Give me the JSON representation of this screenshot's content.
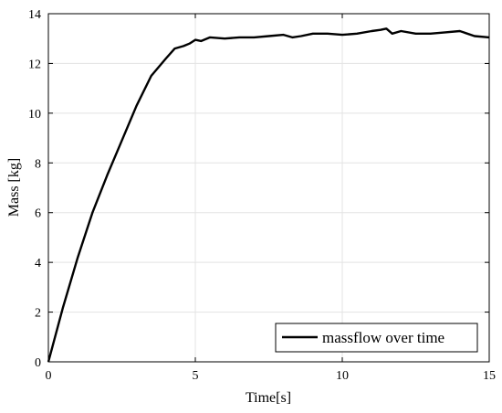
{
  "chart_data": {
    "type": "line",
    "xlabel": "Time[s]",
    "ylabel": "Mass [kg]",
    "xlim": [
      0,
      15
    ],
    "ylim": [
      0,
      14
    ],
    "xticks": [
      0,
      5,
      10,
      15
    ],
    "yticks": [
      0,
      2,
      4,
      6,
      8,
      10,
      12,
      14
    ],
    "grid": true,
    "legend_position": "bottom-right",
    "series": [
      {
        "name": "massflow over time",
        "color": "#000000",
        "x": [
          0,
          0.5,
          1.0,
          1.5,
          2.0,
          2.5,
          3.0,
          3.5,
          4.0,
          4.3,
          4.6,
          4.8,
          5.0,
          5.2,
          5.5,
          6.0,
          6.5,
          7.0,
          7.5,
          8.0,
          8.3,
          8.6,
          9.0,
          9.5,
          10.0,
          10.5,
          11.0,
          11.3,
          11.5,
          11.7,
          12.0,
          12.5,
          13.0,
          13.5,
          14.0,
          14.5,
          15.0
        ],
        "values": [
          0,
          2.2,
          4.2,
          6.0,
          7.5,
          8.9,
          10.3,
          11.5,
          12.2,
          12.6,
          12.7,
          12.8,
          12.95,
          12.9,
          13.05,
          13.0,
          13.05,
          13.05,
          13.1,
          13.15,
          13.05,
          13.1,
          13.2,
          13.2,
          13.15,
          13.2,
          13.3,
          13.35,
          13.4,
          13.2,
          13.3,
          13.2,
          13.2,
          13.25,
          13.3,
          13.1,
          13.05
        ]
      }
    ]
  }
}
